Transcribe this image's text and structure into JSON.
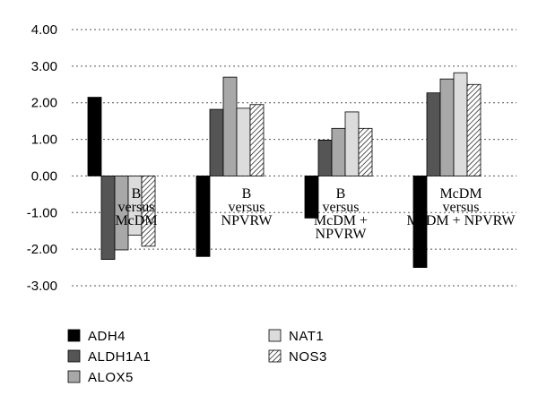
{
  "chart_data": {
    "type": "bar",
    "categories": [
      [
        "B",
        "versus",
        "McDM"
      ],
      [
        "B",
        "versus",
        "NPVRW"
      ],
      [
        "B",
        "versus",
        "McDM +",
        "NPVRW"
      ],
      [
        "McDM",
        "versus",
        "McDM + NPVRW"
      ]
    ],
    "series": [
      {
        "name": "ADH4",
        "values": [
          2.15,
          -2.2,
          -1.15,
          -2.5
        ],
        "fill": "#000000",
        "pattern": "solid"
      },
      {
        "name": "ALDH1A1",
        "values": [
          -2.28,
          1.82,
          0.98,
          2.27
        ],
        "fill": "#555555",
        "pattern": "solid"
      },
      {
        "name": "ALOX5",
        "values": [
          -2.02,
          2.7,
          1.3,
          2.65
        ],
        "fill": "#a8a8a8",
        "pattern": "solid"
      },
      {
        "name": "NAT1",
        "values": [
          -1.62,
          1.85,
          1.75,
          2.82
        ],
        "fill": "#dcdcdc",
        "pattern": "solid"
      },
      {
        "name": "NOS3",
        "values": [
          -1.92,
          1.95,
          1.3,
          2.5
        ],
        "fill": "#ffffff",
        "pattern": "hatch"
      }
    ],
    "ylim": [
      -3,
      4
    ],
    "yticks": [
      "4.00",
      "3.00",
      "2.00",
      "1.00",
      "0.00",
      "-1.00",
      "-2.00",
      "-3.00"
    ],
    "ytick_values": [
      4,
      3,
      2,
      1,
      0,
      -1,
      -2,
      -3
    ],
    "grid": true,
    "legend": "bottom, two columns"
  }
}
